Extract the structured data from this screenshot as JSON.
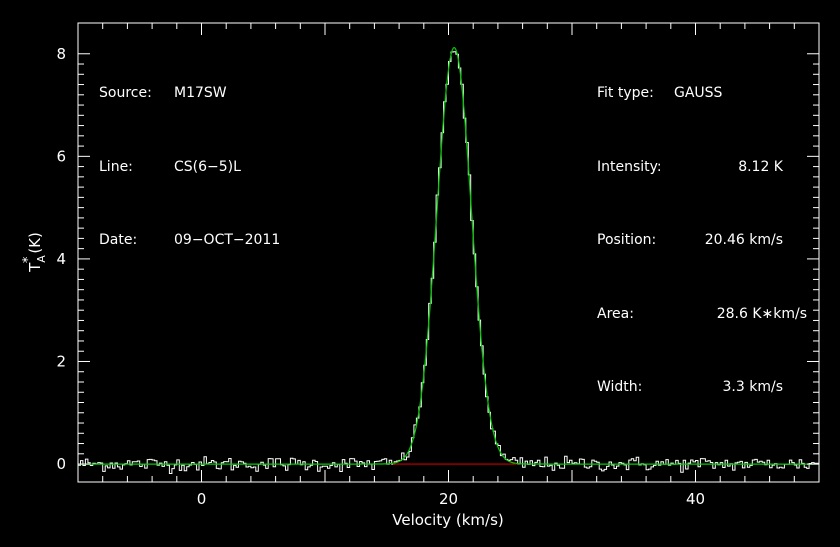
{
  "header_left": [
    {
      "key": "Source:",
      "value": "M17SW"
    },
    {
      "key": "Line:",
      "value": "CS(6−5)L"
    },
    {
      "key": "Date:",
      "value": "09−OCT−2011"
    }
  ],
  "header_right": [
    {
      "key": "Fit type:",
      "value": "GAUSS"
    },
    {
      "key": "Intensity:",
      "value": "8.12 K"
    },
    {
      "key": "Position:",
      "value": "20.46 km/s"
    },
    {
      "key": "Area:",
      "value": "28.6 K∗km/s"
    },
    {
      "key": "Width:",
      "value": "3.3 km/s"
    }
  ],
  "colors": {
    "background": "#000000",
    "axes": "#ffffff",
    "spectrum": "#ffffff",
    "fit": "#00cc00",
    "baseline": "#cc0000"
  },
  "chart_data": {
    "type": "line",
    "xlabel": "Velocity (km/s)",
    "ylabel": "T*A (K)",
    "xlim": [
      -10,
      50
    ],
    "ylim": [
      -0.35,
      8.6
    ],
    "xticks": [
      0,
      20,
      40
    ],
    "yticks": [
      0,
      2,
      4,
      6,
      8
    ],
    "grid": false,
    "series": [
      {
        "style": "histogram",
        "x_start": -10,
        "x_end": 50,
        "step": 0.2,
        "gaussian_peak": 8.12,
        "gaussian_center": 20.46,
        "gaussian_fwhm": 3.3,
        "noise_rms": 0.07
      },
      {
        "style": "line",
        "function": "gaussian",
        "peak": 8.12,
        "center": 20.46,
        "fwhm": 3.3
      },
      {
        "style": "line",
        "function": "constant",
        "value": 0,
        "x_range": [
          15.5,
          25.5
        ]
      }
    ]
  }
}
